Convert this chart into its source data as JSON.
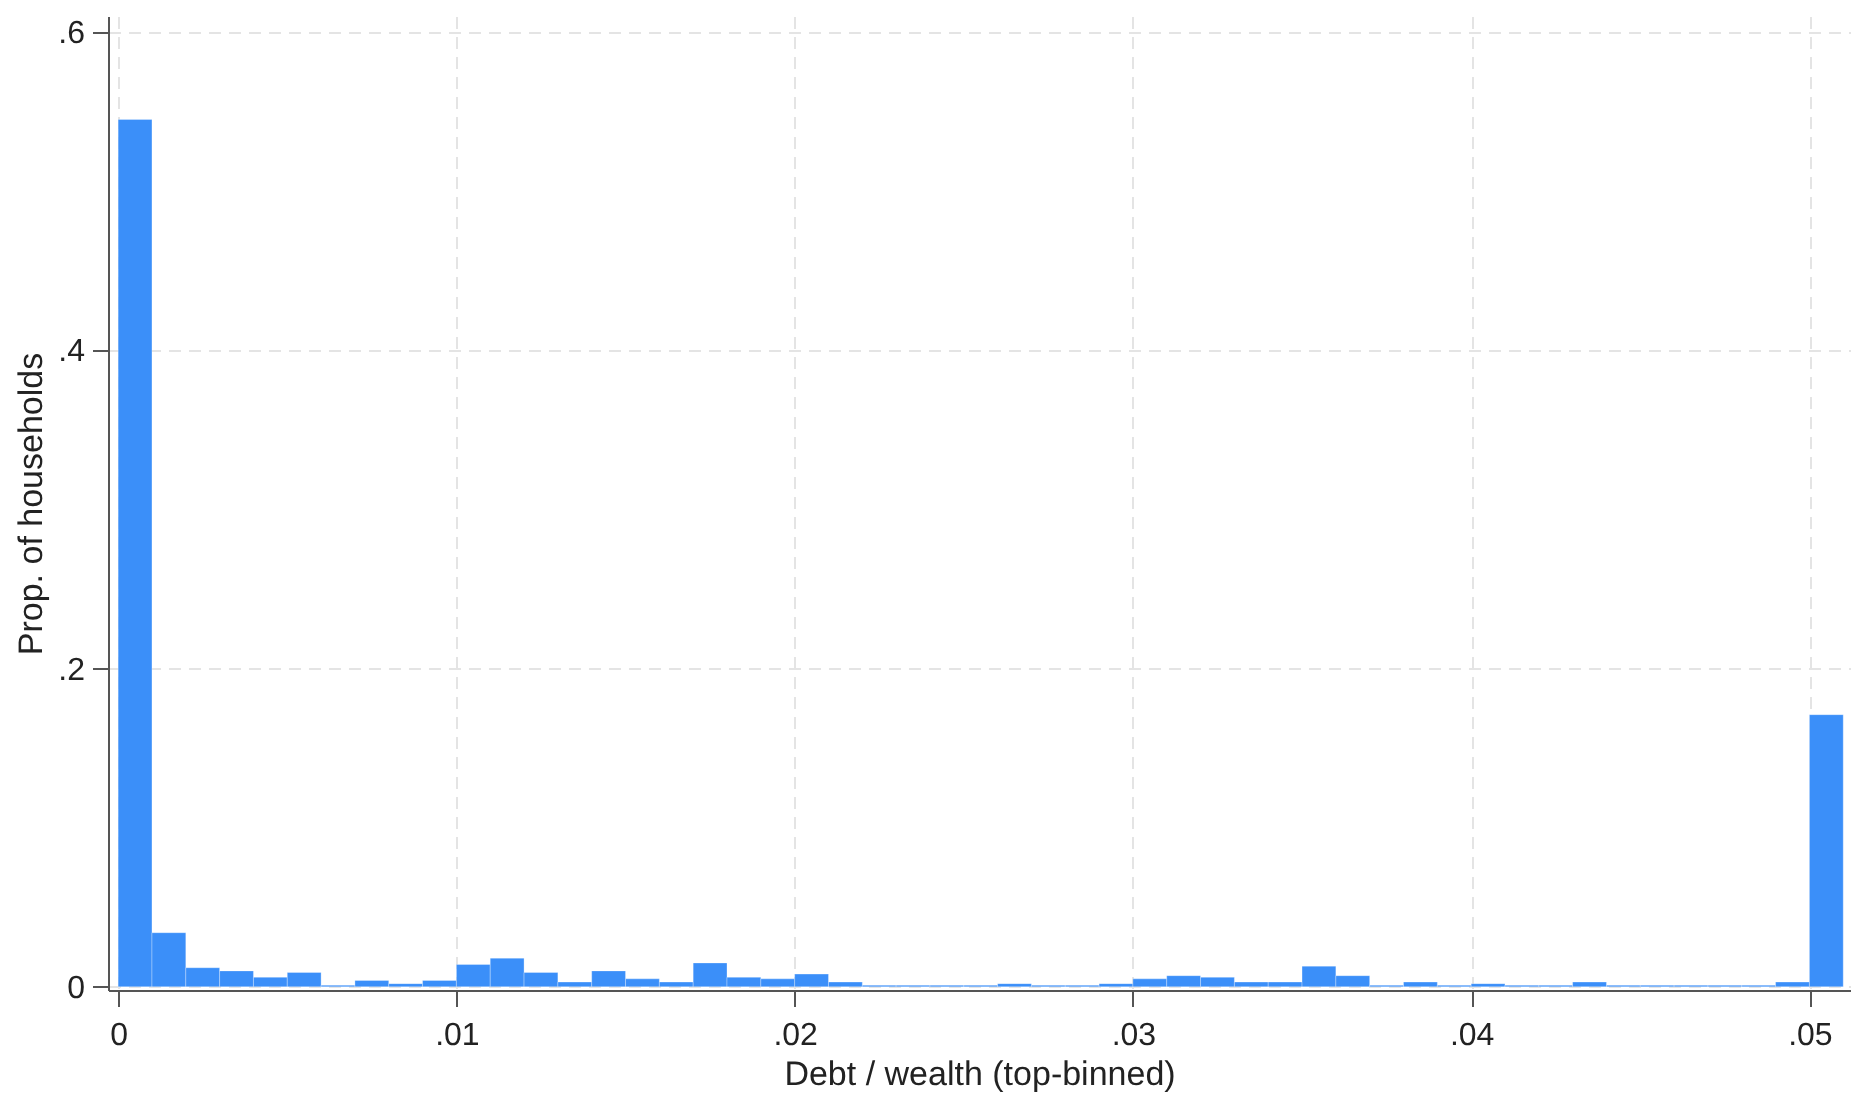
{
  "chart_data": {
    "type": "histogram",
    "xlabel": "Debt / wealth (top-binned)",
    "ylabel": "Prop. of households",
    "color": "#3b8ff9",
    "bins": [
      0,
      0.001,
      0.002,
      0.003,
      0.004,
      0.005,
      0.006,
      0.007,
      0.008,
      0.009,
      0.01,
      0.011,
      0.012,
      0.013,
      0.014,
      0.015,
      0.016,
      0.017,
      0.018,
      0.019,
      0.02,
      0.021,
      0.022,
      0.023,
      0.024,
      0.025,
      0.026,
      0.027,
      0.028,
      0.029,
      0.03,
      0.031,
      0.032,
      0.033,
      0.034,
      0.035,
      0.036,
      0.037,
      0.038,
      0.039,
      0.04,
      0.041,
      0.042,
      0.043,
      0.044,
      0.045,
      0.046,
      0.047,
      0.048,
      0.049,
      0.05,
      0.051
    ],
    "values": [
      0.545,
      0.034,
      0.012,
      0.01,
      0.006,
      0.009,
      0.001,
      0.004,
      0.002,
      0.004,
      0.014,
      0.018,
      0.009,
      0.003,
      0.01,
      0.005,
      0.003,
      0.015,
      0.006,
      0.005,
      0.008,
      0.003,
      0.001,
      0.001,
      0.001,
      0.001,
      0.002,
      0.001,
      0.001,
      0.002,
      0.005,
      0.007,
      0.006,
      0.003,
      0.003,
      0.013,
      0.007,
      0.001,
      0.003,
      0.001,
      0.002,
      0.001,
      0.001,
      0.003,
      0.001,
      0.001,
      0.001,
      0.001,
      0.001,
      0.003,
      0.171
    ],
    "xlim": [
      -0.0003,
      0.0512
    ],
    "ylim": [
      -0.002,
      0.61
    ],
    "xticks": [
      0,
      {
        "value": 0.01,
        "label": ".01"
      },
      {
        "value": 0.02,
        "label": ".02"
      },
      {
        "value": 0.03,
        "label": ".03"
      },
      {
        "value": 0.04,
        "label": ".04"
      },
      {
        "value": 0.05,
        "label": ".05"
      }
    ],
    "yticks": [
      0,
      {
        "value": 0.2,
        "label": ".2"
      },
      {
        "value": 0.4,
        "label": ".4"
      },
      {
        "value": 0.6,
        "label": ".6"
      }
    ],
    "grid": true
  }
}
